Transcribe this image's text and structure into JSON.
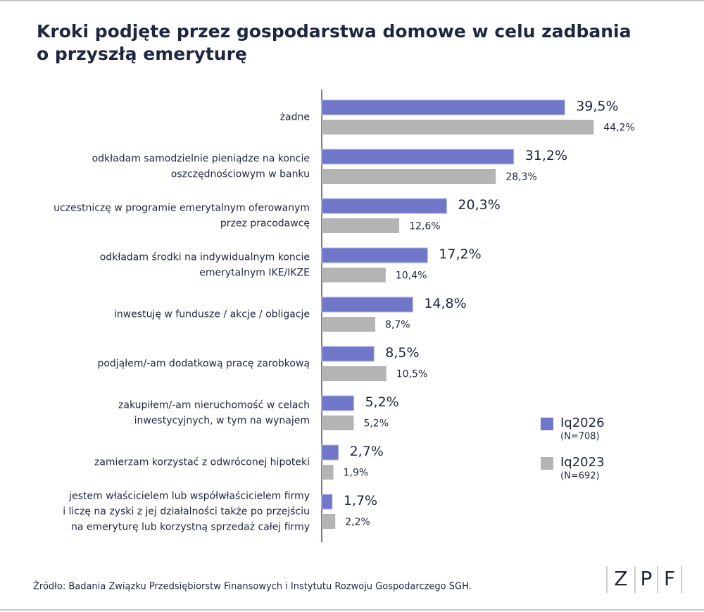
{
  "chart_data": {
    "type": "bar",
    "orientation": "horizontal",
    "title": [
      "Kroki podjęte przez gospodarstwa domowe w celu zadbania",
      "o przyszłą emeryturę"
    ],
    "categories": [
      [
        "żadne"
      ],
      [
        "odkładam samodzielnie pieniądze na koncie",
        "oszczędnościowym w banku"
      ],
      [
        "uczestniczę w programie emerytalnym oferowanym",
        "przez pracodawcę"
      ],
      [
        "odkładam środki na indywidualnym koncie",
        "emerytalnym IKE/IKZE"
      ],
      [
        "inwestuję w fundusze / akcje / obligacje"
      ],
      [
        "podjąłem/-am dodatkową pracę zarobkową"
      ],
      [
        "zakupiłem/-am nieruchomość w celach",
        "inwestycyjnych, w tym na wynajem"
      ],
      [
        "zamierzam korzystać z odwróconej hipoteki"
      ],
      [
        "jestem właścicielem lub współwłaścicielem firmy",
        "i liczę na zyski z jej działalności także po przejściu",
        "na emeryturę lub korzystną sprzedaż całej firmy"
      ]
    ],
    "series": [
      {
        "name": "Iq2026",
        "sample": "(N=708)",
        "color": "#7077c8",
        "values": [
          39.5,
          31.2,
          20.3,
          17.2,
          14.8,
          8.5,
          5.2,
          2.7,
          1.7
        ],
        "value_labels": [
          "39,5%",
          "31,2%",
          "20,3%",
          "17,2%",
          "14,8%",
          "8,5%",
          "5,2%",
          "2,7%",
          "1,7%"
        ]
      },
      {
        "name": "Iq2023",
        "sample": "(N=692)",
        "color": "#b4b4b4",
        "values": [
          44.2,
          28.3,
          12.6,
          10.4,
          8.7,
          10.5,
          5.2,
          1.9,
          2.2
        ],
        "value_labels": [
          "44,2%",
          "28,3%",
          "12,6%",
          "10,4%",
          "8,7%",
          "10,5%",
          "5,2%",
          "1,9%",
          "2,2%"
        ]
      }
    ],
    "xlim": [
      0,
      50
    ],
    "source": "Źródło: Badania Związku Przedsiębiorstw Finansowych i Instytutu Rozwoju Gospodarczego SGH.",
    "logo": [
      "Z",
      "P",
      "F"
    ]
  }
}
